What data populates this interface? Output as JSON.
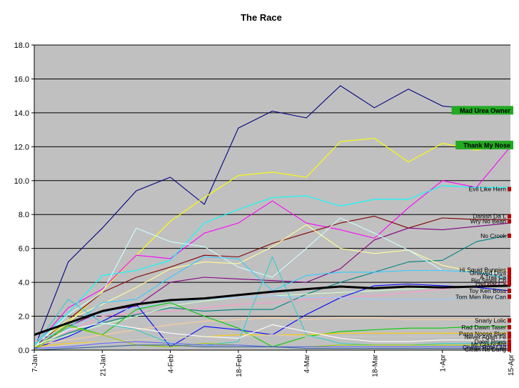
{
  "colors": {
    "plot_background": "#c0c0c0",
    "gridline": "#000000",
    "highlight_box": "#22aa22",
    "end_marker": "#bb0000",
    "average_line": "#000000"
  },
  "chart_data": {
    "type": "line",
    "title": "The Race",
    "xlabel": "",
    "ylabel": "",
    "ylim": [
      0,
      18
    ],
    "grid": true,
    "legend": "none",
    "y_ticks": [
      "0.0",
      "2.0",
      "4.0",
      "6.0",
      "8.0",
      "10.0",
      "12.0",
      "14.0",
      "16.0",
      "18.0"
    ],
    "x_ticks": [
      "7-Jan",
      "21-Jan",
      "4-Feb",
      "18-Feb",
      "4-Mar",
      "18-Mar",
      "1-Apr",
      "15-Apr"
    ],
    "x": [
      "7-Jan",
      "14-Jan",
      "21-Jan",
      "28-Jan",
      "4-Feb",
      "11-Feb",
      "18-Feb",
      "25-Feb",
      "4-Mar",
      "11-Mar",
      "18-Mar",
      "25-Mar",
      "1-Apr",
      "8-Apr",
      "15-Apr"
    ],
    "series": [
      {
        "name": "Mad Urea Owner",
        "color": "#000080",
        "highlight": true,
        "values": [
          0.1,
          5.2,
          7.2,
          9.4,
          10.2,
          8.6,
          13.1,
          14.1,
          13.7,
          15.6,
          14.3,
          15.4,
          14.4,
          14.2,
          14.1
        ]
      },
      {
        "name": "Thank My Nose",
        "color": "#ffff00",
        "highlight": true,
        "values": [
          0.4,
          1.6,
          3.5,
          5.6,
          7.6,
          9.0,
          10.3,
          10.5,
          10.2,
          12.3,
          12.5,
          11.1,
          12.2,
          11.8,
          12.2
        ]
      },
      {
        "name": "",
        "color": "#ff00ff",
        "values": [
          0.2,
          2.5,
          3.6,
          5.6,
          5.4,
          6.9,
          7.5,
          8.8,
          7.5,
          7.1,
          6.6,
          8.4,
          10.0,
          9.6,
          12.0
        ]
      },
      {
        "name": "Evil Like Hern",
        "color": "#00ffff",
        "values": [
          0.3,
          2.2,
          4.4,
          4.7,
          5.3,
          7.5,
          8.3,
          9.0,
          9.1,
          8.5,
          8.9,
          8.9,
          9.7,
          9.6,
          9.6
        ]
      },
      {
        "name": "Danish Da L",
        "color": "#800000",
        "values": [
          0.2,
          1.8,
          3.4,
          4.3,
          4.9,
          5.6,
          5.5,
          6.3,
          6.9,
          7.5,
          7.9,
          7.2,
          7.8,
          7.7,
          7.7
        ]
      },
      {
        "name": "Wry No Bean",
        "color": "#800080",
        "values": [
          0.1,
          1.4,
          2.3,
          2.6,
          4.0,
          4.3,
          4.2,
          4.1,
          4.0,
          4.8,
          6.5,
          7.2,
          7.1,
          7.3,
          7.5
        ]
      },
      {
        "name": "No Crook",
        "color": "#008080",
        "values": [
          0.2,
          1.0,
          1.6,
          2.1,
          2.5,
          2.3,
          2.4,
          2.4,
          3.3,
          4.0,
          4.6,
          5.2,
          5.3,
          6.4,
          6.8
        ]
      },
      {
        "name": "Hi Squid Bunnies",
        "color": "#ffff99",
        "values": [
          0.3,
          1.8,
          2.7,
          3.7,
          4.8,
          5.2,
          5.1,
          6.1,
          7.4,
          6.0,
          5.7,
          5.9,
          5.0,
          4.6,
          4.7
        ]
      },
      {
        "name": "Gnawed Diva",
        "color": "#ccffff",
        "values": [
          0.2,
          2.1,
          3.4,
          7.2,
          6.4,
          6.1,
          4.9,
          4.3,
          6.0,
          7.8,
          6.9,
          5.9,
          4.7,
          4.6,
          4.5
        ]
      },
      {
        "name": "A Trail Ca",
        "color": "#33ccff",
        "values": [
          0.4,
          1.3,
          2.8,
          3.0,
          4.3,
          5.5,
          5.4,
          3.5,
          4.4,
          4.6,
          4.6,
          4.7,
          4.7,
          4.6,
          4.2
        ]
      },
      {
        "name": "Big Smell Ch",
        "color": "#ff99cc",
        "values": [
          0.5,
          1.1,
          2.0,
          2.2,
          2.3,
          2.5,
          2.7,
          2.8,
          3.0,
          3.1,
          3.2,
          3.4,
          3.6,
          3.8,
          4.0
        ]
      },
      {
        "name": "Lad Bar Ca",
        "color": "#ccffcc",
        "values": [
          0.3,
          0.9,
          1.5,
          2.0,
          2.6,
          2.9,
          3.1,
          3.2,
          3.3,
          3.4,
          3.5,
          3.6,
          3.7,
          3.8,
          3.8
        ]
      },
      {
        "name": "Toy Ken Boss",
        "color": "#0000ff",
        "values": [
          0.1,
          0.8,
          1.7,
          2.7,
          0.2,
          1.4,
          1.2,
          0.9,
          2.1,
          3.1,
          3.8,
          3.9,
          3.8,
          3.7,
          3.5
        ]
      },
      {
        "name": "Torn Men Rev Can",
        "color": "#99ccff",
        "values": [
          0.6,
          1.2,
          2.2,
          2.5,
          2.8,
          3.0,
          3.1,
          3.2,
          3.1,
          3.1,
          3.0,
          3.0,
          3.0,
          3.1,
          3.1
        ]
      },
      {
        "name": "Snarly Lolic",
        "color": "#ffcc99",
        "values": [
          0.3,
          0.6,
          0.9,
          1.2,
          1.5,
          1.7,
          1.8,
          1.9,
          1.8,
          1.9,
          1.9,
          1.8,
          1.8,
          1.8,
          1.8
        ]
      },
      {
        "name": "Rad Dawn Taser",
        "color": "#00cc00",
        "values": [
          0.1,
          1.5,
          0.9,
          2.4,
          2.8,
          2.0,
          1.3,
          0.2,
          0.8,
          1.1,
          1.2,
          1.3,
          1.3,
          1.4,
          1.4
        ]
      },
      {
        "name": "Papa Noose Blue",
        "color": "#ffcc00",
        "values": [
          0.2,
          0.4,
          0.5,
          0.6,
          0.7,
          0.8,
          0.9,
          0.9,
          0.9,
          1.0,
          1.0,
          1.0,
          1.0,
          1.0,
          1.0
        ]
      },
      {
        "name": "Never Again Fe",
        "color": "#cccccc",
        "values": [
          0.1,
          0.3,
          0.5,
          0.6,
          0.7,
          0.8,
          0.8,
          0.9,
          0.8,
          0.8,
          0.8,
          0.8,
          0.8,
          0.8,
          0.8
        ]
      },
      {
        "name": "Dater Rows",
        "color": "#33cccc",
        "values": [
          0.2,
          3.0,
          1.6,
          1.2,
          0.4,
          0.3,
          0.5,
          5.5,
          0.9,
          0.4,
          0.3,
          0.3,
          0.4,
          0.4,
          0.5
        ]
      },
      {
        "name": "Mr Crazy Ant",
        "color": "#99cc00",
        "values": [
          0.0,
          1.4,
          0.9,
          0.3,
          0.2,
          0.4,
          0.3,
          0.2,
          0.2,
          0.3,
          0.3,
          0.3,
          0.3,
          0.3,
          0.4
        ]
      },
      {
        "name": "Cheap Row Lad",
        "color": "#6666ff",
        "values": [
          0.1,
          0.2,
          0.4,
          0.5,
          0.4,
          0.3,
          0.3,
          0.2,
          0.2,
          0.2,
          0.2,
          0.2,
          0.2,
          0.2,
          0.3
        ]
      },
      {
        "name": "Clean No Dung",
        "color": "#336699",
        "values": [
          0.0,
          0.1,
          0.2,
          0.3,
          0.3,
          0.2,
          0.2,
          0.2,
          0.1,
          0.1,
          0.1,
          0.1,
          0.1,
          0.1,
          0.1
        ]
      },
      {
        "name": "",
        "color": "#ffffff",
        "values": [
          0.2,
          1.2,
          1.6,
          1.3,
          1.0,
          0.8,
          0.7,
          1.5,
          1.1,
          0.7,
          0.5,
          0.5,
          0.6,
          0.6,
          0.6
        ]
      },
      {
        "name": "",
        "color": "#000000",
        "average": true,
        "values": [
          0.9,
          1.6,
          2.3,
          2.7,
          2.95,
          3.05,
          3.25,
          3.45,
          3.6,
          3.75,
          3.65,
          3.75,
          3.7,
          3.75,
          3.8
        ]
      }
    ],
    "labels_at_end": [
      {
        "text": "Mad Urea Owner",
        "y": 14.15,
        "boxed": true
      },
      {
        "text": "Thank My Nose",
        "y": 12.1,
        "boxed": true
      },
      {
        "text": "Evil Like Hern",
        "y": 9.5
      },
      {
        "text": "Danish Da L",
        "y": 7.9
      },
      {
        "text": "Wry No Bean",
        "y": 7.6
      },
      {
        "text": "No Crook",
        "y": 6.75
      },
      {
        "text": "Hi Squid Bunnies",
        "y": 4.75
      },
      {
        "text": "Gnawed Diva",
        "y": 4.55
      },
      {
        "text": "A Trail Ca",
        "y": 4.3
      },
      {
        "text": "Big Smell Ch",
        "y": 4.1
      },
      {
        "text": "Lad Bar Ca",
        "y": 3.9
      },
      {
        "text": "Toy Ken Boss",
        "y": 3.5
      },
      {
        "text": "Torn Men Rev Can",
        "y": 3.15
      },
      {
        "text": "Snarly Lolic",
        "y": 1.75
      },
      {
        "text": "Rad Dawn Taser",
        "y": 1.35
      },
      {
        "text": "Papa Noose Blue",
        "y": 0.97
      },
      {
        "text": "Never Again Fe",
        "y": 0.78
      },
      {
        "text": "Dater Rows",
        "y": 0.5
      },
      {
        "text": "Mr Crazy Ant",
        "y": 0.33
      },
      {
        "text": "Cheap Row Lad",
        "y": 0.17
      },
      {
        "text": "Clean No Dung",
        "y": 0.04
      }
    ]
  }
}
